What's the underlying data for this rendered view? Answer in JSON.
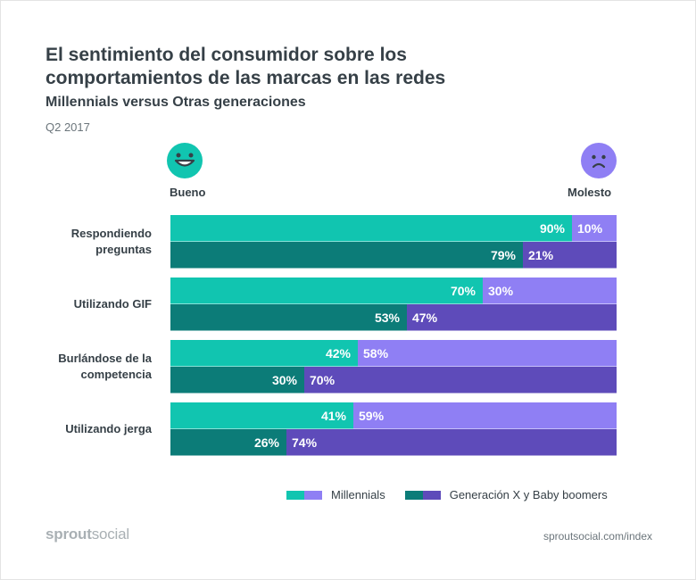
{
  "header": {
    "title": "El sentimiento del consumidor sobre los comportamientos de las marcas en las redes",
    "subtitle": "Millennials versus Otras generaciones",
    "period": "Q2 2017"
  },
  "faces": {
    "good_label": "Bueno",
    "bad_label": "Molesto",
    "good_icon": "smiley-icon",
    "bad_icon": "frown-icon"
  },
  "colors": {
    "millennials_good": "#11c5b0",
    "millennials_bad": "#8f7ff4",
    "genx_good": "#0c7c78",
    "genx_bad": "#5e4bba"
  },
  "legend": {
    "millennials": "Millennials",
    "genx": "Generación X y Baby boomers"
  },
  "footer": {
    "brand_bold": "sprout",
    "brand_rest": "social",
    "url": "sproutsocial.com/index"
  },
  "chart_data": {
    "type": "bar",
    "orientation": "horizontal",
    "stacked": "100%",
    "categories": [
      "Respondiendo preguntas",
      "Utilizando GIF",
      "Burlándose de la competencia",
      "Utilizando jerga"
    ],
    "series": [
      {
        "name": "Millennials",
        "bueno": [
          90,
          70,
          42,
          41
        ],
        "molesto": [
          10,
          30,
          58,
          59
        ]
      },
      {
        "name": "Generación X y Baby boomers",
        "bueno": [
          79,
          53,
          30,
          26
        ],
        "molesto": [
          21,
          47,
          70,
          74
        ]
      }
    ],
    "xlim": [
      0,
      100
    ],
    "unit": "%",
    "legend_position": "bottom-right"
  }
}
